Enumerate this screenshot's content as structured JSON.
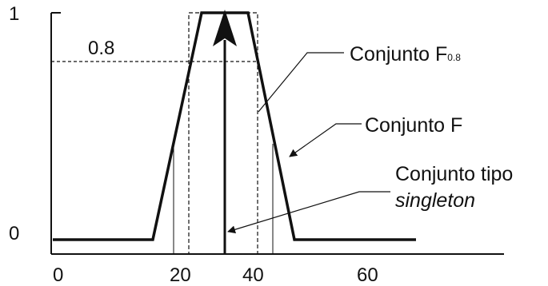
{
  "axes": {
    "y_ticks": [
      "1",
      "0"
    ],
    "x_ticks": [
      "0",
      "20",
      "40",
      "60"
    ]
  },
  "alpha_cut": {
    "value_label": "0.8"
  },
  "labels": {
    "set_cut_main": "Conjunto F",
    "set_cut_sub": "0.8",
    "set_f": "Conjunto F",
    "singleton_line1": "Conjunto tipo",
    "singleton_line2": "singleton"
  },
  "colors": {
    "line": "#111111",
    "background": "#ffffff"
  }
}
